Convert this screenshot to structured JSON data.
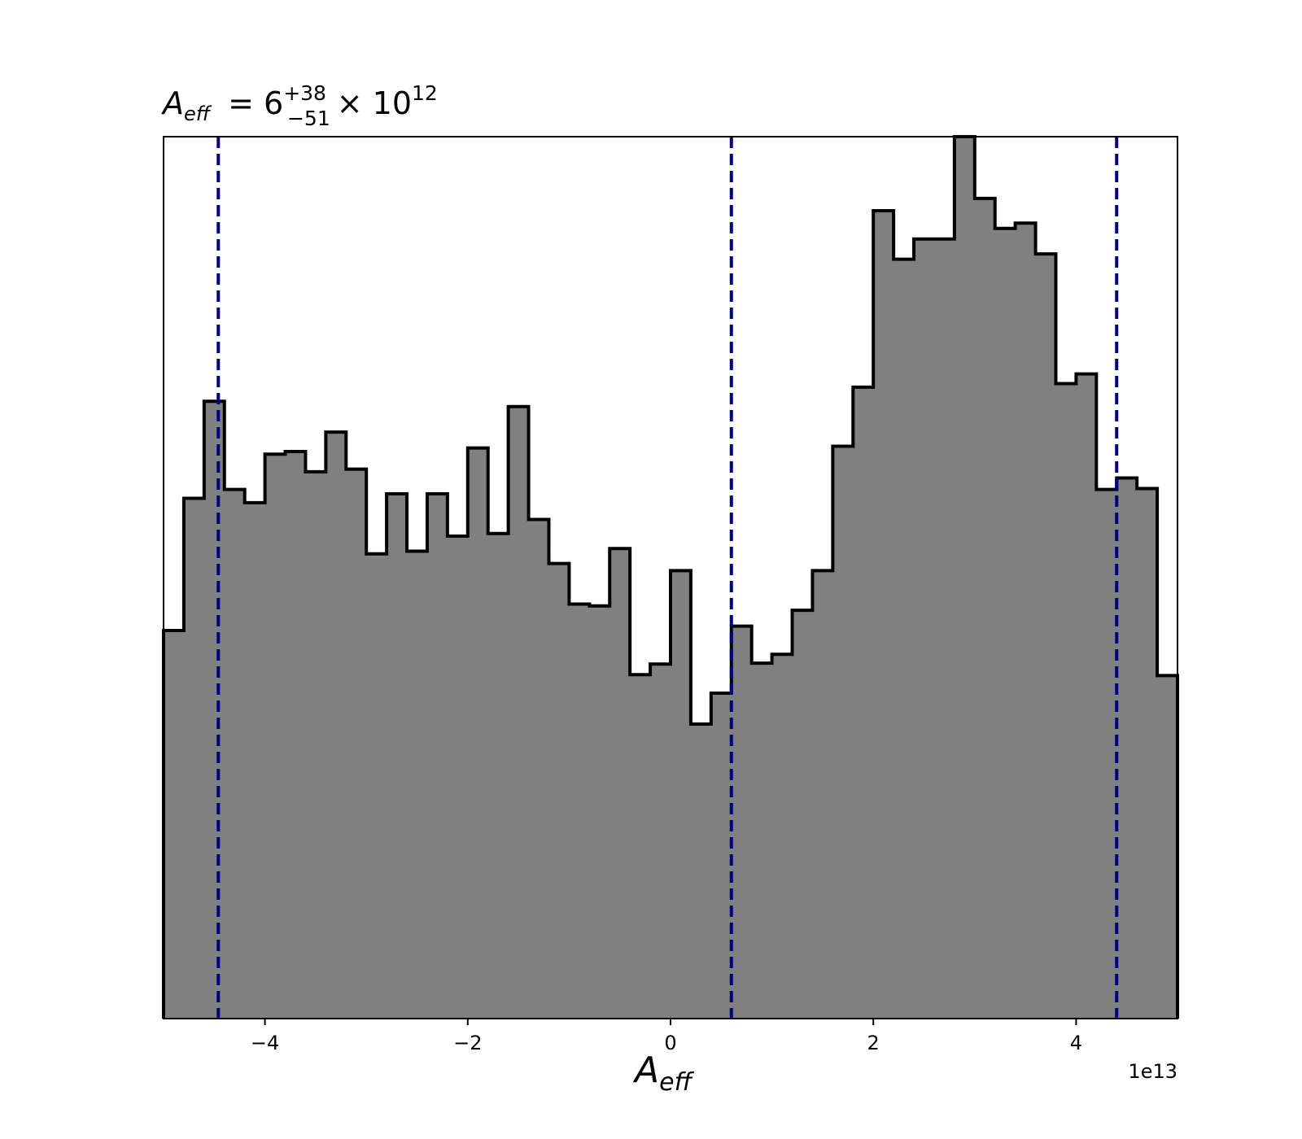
{
  "chart_data": {
    "type": "histogram",
    "title": {
      "var_main": "A",
      "var_sub": "eff",
      "equals": "= 6",
      "sup": "+38",
      "sub": "−51",
      "times": "× 10",
      "exp": "12"
    },
    "xlabel": {
      "main": "A",
      "sub": "eff"
    },
    "x_offset_label": "1e13",
    "xlim": [
      -5,
      5
    ],
    "ylim": [
      0,
      1
    ],
    "x_ticks": [
      -4,
      -2,
      0,
      2,
      4
    ],
    "x_tick_labels": [
      "−4",
      "−2",
      "0",
      "2",
      "4"
    ],
    "y_axis_visible": false,
    "grid": false,
    "bin_edges": [
      -5.0,
      -4.8,
      -4.6,
      -4.4,
      -4.2,
      -4.0,
      -3.8,
      -3.6,
      -3.4,
      -3.2,
      -3.0,
      -2.8,
      -2.6,
      -2.4,
      -2.2,
      -2.0,
      -1.8,
      -1.6,
      -1.4,
      -1.2,
      -1.0,
      -0.8,
      -0.6,
      -0.4,
      -0.2,
      0.0,
      0.2,
      0.4,
      0.6,
      0.8,
      1.0,
      1.2,
      1.4,
      1.6,
      1.8,
      2.0,
      2.2,
      2.4,
      2.6,
      2.8,
      3.0,
      3.2,
      3.4,
      3.6,
      3.8,
      4.0,
      4.2,
      4.4,
      4.6,
      4.8,
      5.0
    ],
    "counts": [
      0.44,
      0.59,
      0.7,
      0.6,
      0.585,
      0.64,
      0.643,
      0.62,
      0.665,
      0.623,
      0.527,
      0.595,
      0.53,
      0.595,
      0.547,
      0.647,
      0.55,
      0.694,
      0.566,
      0.516,
      0.47,
      0.468,
      0.533,
      0.39,
      0.402,
      0.508,
      0.334,
      0.369,
      0.445,
      0.403,
      0.413,
      0.463,
      0.508,
      0.649,
      0.716,
      0.916,
      0.861,
      0.884,
      0.884,
      1.0,
      0.93,
      0.896,
      0.902,
      0.867,
      0.72,
      0.731,
      0.6,
      0.613,
      0.601,
      0.389
    ],
    "vlines": [
      -4.46,
      0.6,
      4.4
    ],
    "colors": {
      "fill": "#808080",
      "edge": "#000000",
      "vline": "#000080"
    }
  }
}
